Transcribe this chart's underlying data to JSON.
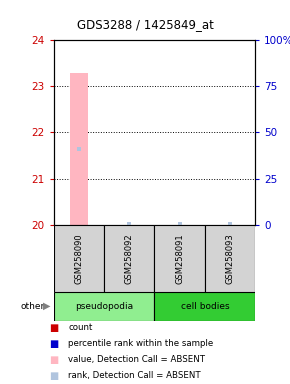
{
  "title": "GDS3288 / 1425849_at",
  "samples": [
    "GSM258090",
    "GSM258092",
    "GSM258091",
    "GSM258093"
  ],
  "ylim": [
    20,
    24
  ],
  "yticks_left": [
    20,
    21,
    22,
    23,
    24
  ],
  "yticks_right": [
    0,
    25,
    50,
    75,
    100
  ],
  "ylim_right": [
    0,
    100
  ],
  "bar_value": 23.3,
  "bar_rank": 21.65,
  "bar_sample_idx": 0,
  "dot_ranks": [
    20.02,
    20.02,
    20.02
  ],
  "dot_sample_idxs": [
    1,
    2,
    3
  ],
  "bar_color_absent": "#ffb6c1",
  "rank_dot_color_absent": "#b0c4de",
  "legend_items": [
    {
      "label": "count",
      "color": "#cc0000"
    },
    {
      "label": "percentile rank within the sample",
      "color": "#0000cc"
    },
    {
      "label": "value, Detection Call = ABSENT",
      "color": "#ffb6c1"
    },
    {
      "label": "rank, Detection Call = ABSENT",
      "color": "#b0c4de"
    }
  ],
  "left_tick_color": "#cc0000",
  "right_tick_color": "#0000cc",
  "pseudopodia_color": "#90ee90",
  "cell_bodies_color": "#33cc33",
  "sample_box_color": "#d3d3d3",
  "bar_width": 0.35
}
